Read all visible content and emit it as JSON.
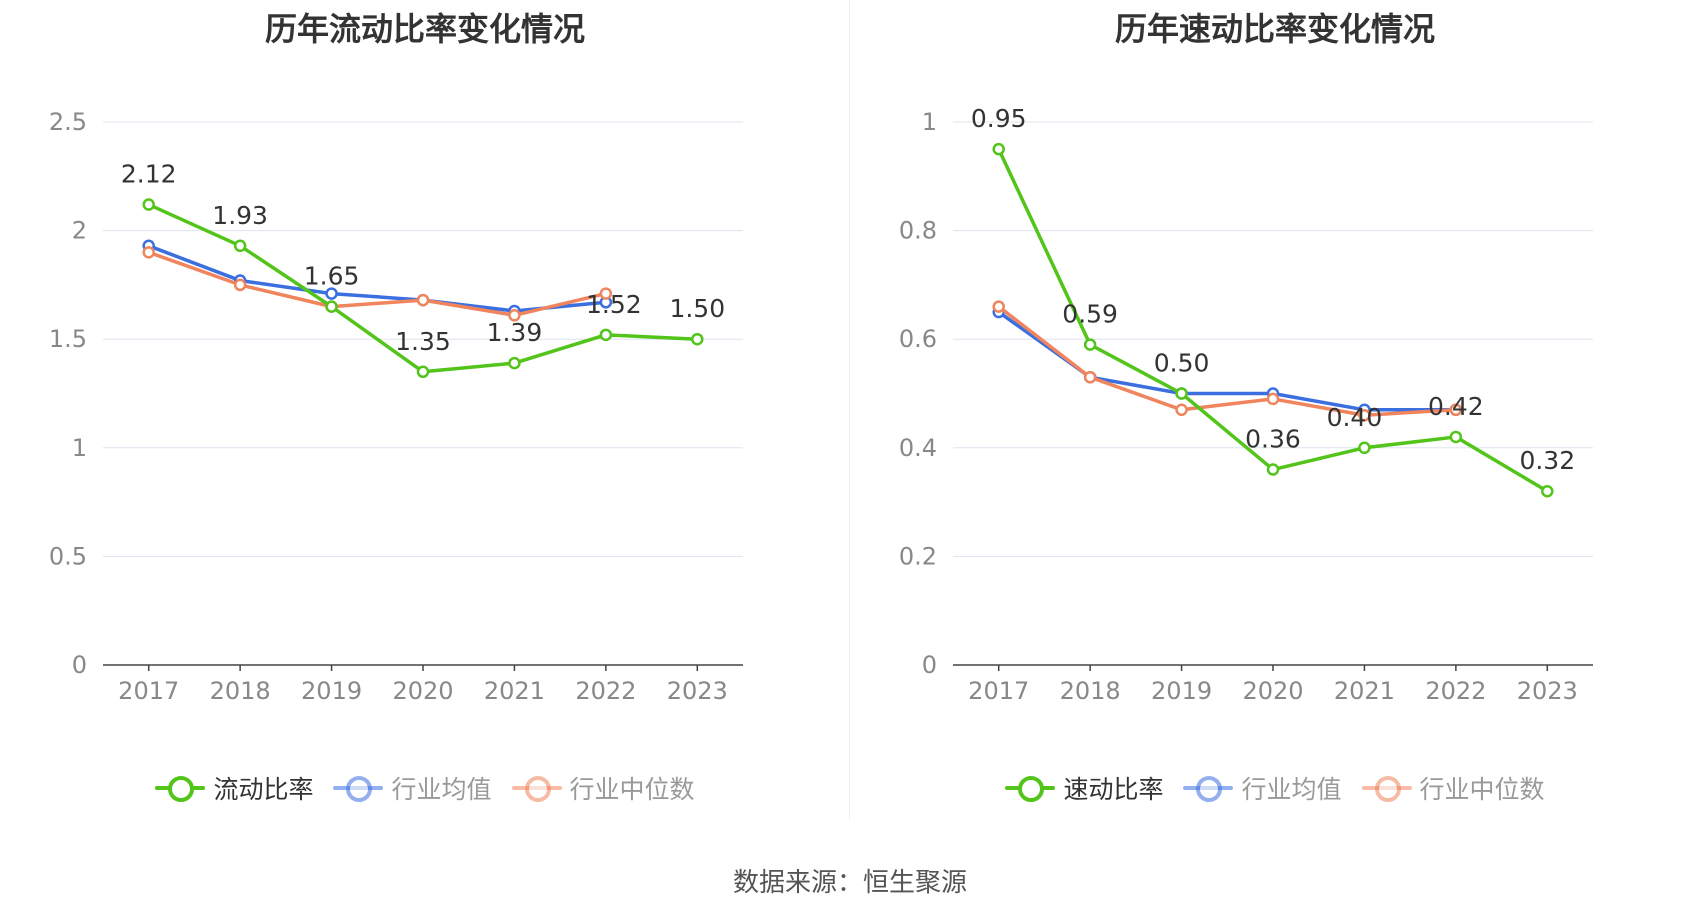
{
  "colors": {
    "primary": "#52c41a",
    "avg": "#3b6fe0",
    "median": "#f0845c"
  },
  "source_text": "数据来源：恒生聚源",
  "chart_data": [
    {
      "type": "line",
      "title": "历年流动比率变化情况",
      "x": [
        "2017",
        "2018",
        "2019",
        "2020",
        "2021",
        "2022",
        "2023"
      ],
      "ylim": [
        0,
        2.5
      ],
      "yticks": [
        "0",
        "0.5",
        "1",
        "1.5",
        "2",
        "2.5"
      ],
      "ytick_values": [
        0,
        0.5,
        1,
        1.5,
        2,
        2.5
      ],
      "grid": true,
      "legend_position": "bottom",
      "series": [
        {
          "name": "流动比率",
          "color": "#52c41a",
          "values": [
            2.12,
            1.93,
            1.65,
            1.35,
            1.39,
            1.52,
            1.5
          ],
          "labels": [
            "2.12",
            "1.93",
            "1.65",
            "1.35",
            "1.39",
            "1.52",
            "1.50"
          ]
        },
        {
          "name": "行业均值",
          "color": "#3b6fe0",
          "values": [
            1.93,
            1.77,
            1.71,
            1.68,
            1.63,
            1.67,
            null
          ]
        },
        {
          "name": "行业中位数",
          "color": "#f0845c",
          "values": [
            1.9,
            1.75,
            1.65,
            1.68,
            1.61,
            1.71,
            null
          ]
        }
      ]
    },
    {
      "type": "line",
      "title": "历年速动比率变化情况",
      "x": [
        "2017",
        "2018",
        "2019",
        "2020",
        "2021",
        "2022",
        "2023"
      ],
      "ylim": [
        0,
        1
      ],
      "yticks": [
        "0",
        "0.2",
        "0.4",
        "0.6",
        "0.8",
        "1"
      ],
      "ytick_values": [
        0,
        0.2,
        0.4,
        0.6,
        0.8,
        1
      ],
      "grid": true,
      "legend_position": "bottom",
      "series": [
        {
          "name": "速动比率",
          "color": "#52c41a",
          "values": [
            0.95,
            0.59,
            0.5,
            0.36,
            0.4,
            0.42,
            0.32
          ],
          "labels": [
            "0.95",
            "0.59",
            "0.50",
            "0.36",
            "0.40",
            "0.42",
            "0.32"
          ]
        },
        {
          "name": "行业均值",
          "color": "#3b6fe0",
          "values": [
            0.65,
            0.53,
            0.5,
            0.5,
            0.47,
            0.47,
            null
          ]
        },
        {
          "name": "行业中位数",
          "color": "#f0845c",
          "values": [
            0.66,
            0.53,
            0.47,
            0.49,
            0.46,
            0.47,
            null
          ]
        }
      ]
    }
  ]
}
